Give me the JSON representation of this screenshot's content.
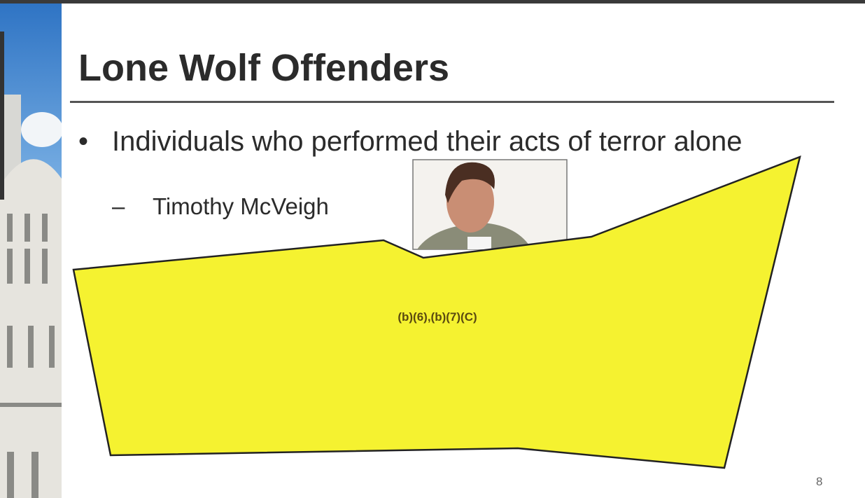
{
  "slide": {
    "title": "Lone Wolf Offenders",
    "bullets": [
      {
        "text": "Individuals who performed their acts of terror alone",
        "subbullets": [
          "Timothy McVeigh"
        ]
      }
    ],
    "redaction_label": "(b)(6),(b)(7)(C)",
    "page_number": 8
  }
}
